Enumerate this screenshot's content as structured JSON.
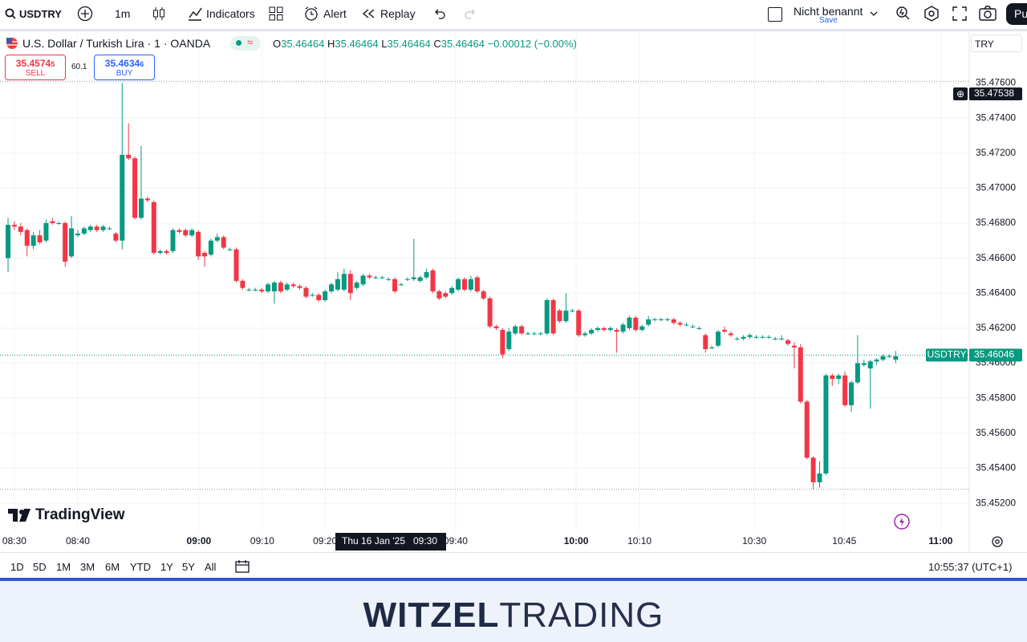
{
  "toolbar": {
    "symbol": "USDTRY",
    "interval": "1m",
    "indicators": "Indicators",
    "alert": "Alert",
    "replay": "Replay",
    "layout_name": "Nicht benannt",
    "save": "Save",
    "publish": "Pu"
  },
  "legend": {
    "title": "U.S. Dollar / Turkish Lira · 1 · OANDA",
    "o_label": "O",
    "o": "35.46464",
    "h_label": "H",
    "h": "35.46464",
    "l_label": "L",
    "l": "35.46464",
    "c_label": "C",
    "c": "35.46464",
    "change": "−0.00012 (−0.00%)"
  },
  "trade": {
    "sell_price": "35.4574",
    "sell_last": "5",
    "sell": "SELL",
    "spread": "60.1",
    "buy_price": "35.4634",
    "buy_last": "6",
    "buy": "BUY"
  },
  "currency": "TRY",
  "logo": "TradingView",
  "ranges": [
    "1D",
    "5D",
    "1M",
    "3M",
    "6M",
    "YTD",
    "1Y",
    "5Y",
    "All"
  ],
  "clock": "10:55:37 (UTC+1)",
  "banner": {
    "bold": "WITZEL",
    "light": "TRADING"
  },
  "chart_data": {
    "type": "candlestick",
    "up_color": "#089981",
    "down_color": "#f23645",
    "grid": true,
    "ylim": [
      35.4504,
      35.479
    ],
    "yticks": [
      {
        "value": 35.476,
        "label": "35.47600"
      },
      {
        "value": 35.474,
        "label": "35.47400"
      },
      {
        "value": 35.472,
        "label": "35.47200"
      },
      {
        "value": 35.47,
        "label": "35.47000"
      },
      {
        "value": 35.468,
        "label": "35.46800"
      },
      {
        "value": 35.466,
        "label": "35.46600"
      },
      {
        "value": 35.464,
        "label": "35.46400"
      },
      {
        "value": 35.462,
        "label": "35.46200"
      },
      {
        "value": 35.46,
        "label": "35.46000"
      },
      {
        "value": 35.458,
        "label": "35.45800"
      },
      {
        "value": 35.456,
        "label": "35.45600"
      },
      {
        "value": 35.454,
        "label": "35.45400"
      },
      {
        "value": 35.452,
        "label": "35.45200"
      }
    ],
    "xlim": [
      -1.27,
      151.6
    ],
    "xticks": [
      {
        "value": 1,
        "label": "08:30"
      },
      {
        "value": 11,
        "label": "08:40"
      },
      {
        "value": 30.1,
        "label": "09:00"
      },
      {
        "value": 40.1,
        "label": "09:10"
      },
      {
        "value": 50,
        "label": "09:20"
      },
      {
        "value": 70.6,
        "label": "09:40"
      },
      {
        "value": 89.6,
        "label": "10:00"
      },
      {
        "value": 99.6,
        "label": "10:10"
      },
      {
        "value": 117.7,
        "label": "10:30"
      },
      {
        "value": 131.9,
        "label": "10:45"
      },
      {
        "value": 147.1,
        "label": "11:00"
      }
    ],
    "high_line": 35.4761,
    "low_line": 35.4528,
    "last_price": {
      "name": "USDTRY",
      "value": 35.46046,
      "label": "35.46046"
    },
    "crosshair": {
      "value": 35.47538,
      "label": "35.47538",
      "date": "Thu 16 Jan '25",
      "time": "09:30"
    },
    "values": [
      [
        35.466,
        35.4683,
        35.4652,
        35.4679
      ],
      [
        35.4679,
        35.4681,
        35.4676,
        35.4678
      ],
      [
        35.4678,
        35.468,
        35.4673,
        35.4675
      ],
      [
        35.4676,
        35.4677,
        35.4661,
        35.4667
      ],
      [
        35.4667,
        35.4675,
        35.4665,
        35.4673
      ],
      [
        35.4673,
        35.4676,
        35.4668,
        35.4669
      ],
      [
        35.467,
        35.4682,
        35.4669,
        35.468
      ],
      [
        35.4681,
        35.4683,
        35.4679,
        35.468
      ],
      [
        35.468,
        35.4681,
        35.4679,
        35.468
      ],
      [
        35.468,
        35.4681,
        35.4655,
        35.4658
      ],
      [
        35.4661,
        35.4684,
        35.466,
        35.4677
      ],
      [
        35.4673,
        35.4676,
        35.4672,
        35.4674
      ],
      [
        35.4674,
        35.4678,
        35.4673,
        35.4677
      ],
      [
        35.4676,
        35.4679,
        35.4675,
        35.4678
      ],
      [
        35.4678,
        35.4679,
        35.4675,
        35.4676
      ],
      [
        35.4676,
        35.4679,
        35.4675,
        35.4678
      ],
      [
        35.4677,
        35.4678,
        35.4676,
        35.4677
      ],
      [
        35.4674,
        35.4675,
        35.4669,
        35.467
      ],
      [
        35.467,
        35.476,
        35.4665,
        35.4719
      ],
      [
        35.4719,
        35.4737,
        35.4716,
        35.4717
      ],
      [
        35.4717,
        35.4718,
        35.4682,
        35.4683
      ],
      [
        35.4683,
        35.4724,
        35.4682,
        35.4694
      ],
      [
        35.4694,
        35.4695,
        35.4692,
        35.4693
      ],
      [
        35.4692,
        35.4693,
        35.4662,
        35.4663
      ],
      [
        35.4663,
        35.4665,
        35.4662,
        35.4664
      ],
      [
        35.4664,
        35.4665,
        35.4662,
        35.4663
      ],
      [
        35.4664,
        35.4677,
        35.4663,
        35.4676
      ],
      [
        35.4676,
        35.4677,
        35.4674,
        35.4675
      ],
      [
        35.4676,
        35.4677,
        35.4672,
        35.4673
      ],
      [
        35.4673,
        35.4677,
        35.4672,
        35.4676
      ],
      [
        35.4675,
        35.4676,
        35.4659,
        35.4661
      ],
      [
        35.4663,
        35.4664,
        35.4655,
        35.4661
      ],
      [
        35.4662,
        35.4671,
        35.4661,
        35.467
      ],
      [
        35.467,
        35.4674,
        35.4669,
        35.4672
      ],
      [
        35.4672,
        35.4673,
        35.4665,
        35.4666
      ],
      [
        35.4665,
        35.4666,
        35.4664,
        35.4665
      ],
      [
        35.4665,
        35.4666,
        35.4646,
        35.4647
      ],
      [
        35.4647,
        35.4648,
        35.4642,
        35.4643
      ],
      [
        35.4642,
        35.4643,
        35.4641,
        35.4642
      ],
      [
        35.4642,
        35.4643,
        35.4641,
        35.4642
      ],
      [
        35.4642,
        35.4643,
        35.464,
        35.4641
      ],
      [
        35.4641,
        35.4646,
        35.464,
        35.4645
      ],
      [
        35.4641,
        35.4647,
        35.4634,
        35.4646
      ],
      [
        35.4646,
        35.4647,
        35.464,
        35.4641
      ],
      [
        35.4642,
        35.4646,
        35.4641,
        35.4645
      ],
      [
        35.4645,
        35.4646,
        35.4643,
        35.4644
      ],
      [
        35.4644,
        35.4645,
        35.4642,
        35.4643
      ],
      [
        35.4643,
        35.4644,
        35.4637,
        35.4638
      ],
      [
        35.4639,
        35.464,
        35.4638,
        35.4639
      ],
      [
        35.4639,
        35.464,
        35.4635,
        35.4636
      ],
      [
        35.4636,
        35.4642,
        35.4635,
        35.4641
      ],
      [
        35.4641,
        35.4646,
        35.464,
        35.4645
      ],
      [
        35.4642,
        35.4652,
        35.4641,
        35.4648
      ],
      [
        35.4642,
        35.4654,
        35.4641,
        35.4651
      ],
      [
        35.4651,
        35.4653,
        35.4636,
        35.464
      ],
      [
        35.4643,
        35.4647,
        35.4642,
        35.4646
      ],
      [
        35.4645,
        35.4651,
        35.4644,
        35.465
      ],
      [
        35.465,
        35.4651,
        35.4648,
        35.4649
      ],
      [
        35.4649,
        35.465,
        35.4648,
        35.4649
      ],
      [
        35.4649,
        35.465,
        35.4648,
        35.4649
      ],
      [
        35.4648,
        35.4649,
        35.4647,
        35.4648
      ],
      [
        35.4648,
        35.4649,
        35.464,
        35.4641
      ],
      [
        35.4645,
        35.4646,
        35.4644,
        35.4645
      ],
      [
        35.4648,
        35.4649,
        35.4647,
        35.4648
      ],
      [
        35.4648,
        35.4671,
        35.4647,
        35.4649
      ],
      [
        35.4647,
        35.465,
        35.4646,
        35.4649
      ],
      [
        35.4649,
        35.4654,
        35.4648,
        35.4652
      ],
      [
        35.4653,
        35.4654,
        35.464,
        35.4641
      ],
      [
        35.4641,
        35.4642,
        35.4636,
        35.4637
      ],
      [
        35.464,
        35.4641,
        35.4637,
        35.4638
      ],
      [
        35.464,
        35.4644,
        35.4639,
        35.4643
      ],
      [
        35.4642,
        35.4649,
        35.4641,
        35.4648
      ],
      [
        35.4648,
        35.4649,
        35.4641,
        35.4642
      ],
      [
        35.4642,
        35.465,
        35.4641,
        35.4648
      ],
      [
        35.4649,
        35.465,
        35.464,
        35.4641
      ],
      [
        35.4641,
        35.4642,
        35.4636,
        35.4637
      ],
      [
        35.4637,
        35.4638,
        35.462,
        35.4621
      ],
      [
        35.4621,
        35.4622,
        35.4619,
        35.462
      ],
      [
        35.4619,
        35.462,
        35.4603,
        35.4605
      ],
      [
        35.4608,
        35.462,
        35.4607,
        35.4618
      ],
      [
        35.4617,
        35.4622,
        35.4616,
        35.4621
      ],
      [
        35.4621,
        35.4622,
        35.4616,
        35.4617
      ],
      [
        35.4617,
        35.4618,
        35.4616,
        35.4617
      ],
      [
        35.4617,
        35.4618,
        35.4616,
        35.4617
      ],
      [
        35.4617,
        35.4618,
        35.4616,
        35.4617
      ],
      [
        35.4617,
        35.4637,
        35.4616,
        35.4636
      ],
      [
        35.4636,
        35.4637,
        35.4616,
        35.4617
      ],
      [
        35.463,
        35.4631,
        35.4623,
        35.4624
      ],
      [
        35.4624,
        35.464,
        35.4623,
        35.463
      ],
      [
        35.463,
        35.4631,
        35.4629,
        35.463
      ],
      [
        35.463,
        35.4631,
        35.4615,
        35.4616
      ],
      [
        35.4616,
        35.4618,
        35.4615,
        35.4617
      ],
      [
        35.4617,
        35.462,
        35.4616,
        35.4619
      ],
      [
        35.4619,
        35.4621,
        35.4618,
        35.462
      ],
      [
        35.462,
        35.4621,
        35.4618,
        35.4619
      ],
      [
        35.4619,
        35.4621,
        35.4618,
        35.462
      ],
      [
        35.4619,
        35.462,
        35.4606,
        35.4618
      ],
      [
        35.4618,
        35.4623,
        35.4617,
        35.4622
      ],
      [
        35.462,
        35.4627,
        35.4619,
        35.4626
      ],
      [
        35.4626,
        35.4627,
        35.4618,
        35.4619
      ],
      [
        35.4619,
        35.4622,
        35.4618,
        35.4621
      ],
      [
        35.4622,
        35.4627,
        35.4621,
        35.4625
      ],
      [
        35.4625,
        35.4626,
        35.4624,
        35.4625
      ],
      [
        35.4625,
        35.4626,
        35.4624,
        35.4625
      ],
      [
        35.4625,
        35.4626,
        35.4624,
        35.4625
      ],
      [
        35.4625,
        35.4626,
        35.4622,
        35.4623
      ],
      [
        35.4623,
        35.4624,
        35.4621,
        35.4622
      ],
      [
        35.4622,
        35.4623,
        35.4621,
        35.4622
      ],
      [
        35.4621,
        35.4622,
        35.462,
        35.4621
      ],
      [
        35.462,
        35.4621,
        35.4619,
        35.462
      ],
      [
        35.4616,
        35.4617,
        35.4606,
        35.4608
      ],
      [
        35.4609,
        35.461,
        35.4608,
        35.4609
      ],
      [
        35.461,
        35.4619,
        35.4609,
        35.4618
      ],
      [
        35.4619,
        35.4621,
        35.4617,
        35.4618
      ],
      [
        35.4617,
        35.4618,
        35.4615,
        35.4616
      ],
      [
        35.4614,
        35.4615,
        35.4613,
        35.4614
      ],
      [
        35.4614,
        35.4616,
        35.4613,
        35.4615
      ],
      [
        35.4615,
        35.4617,
        35.4614,
        35.4616
      ],
      [
        35.4615,
        35.4616,
        35.4614,
        35.4615
      ],
      [
        35.4615,
        35.4616,
        35.4614,
        35.4615
      ],
      [
        35.4615,
        35.4616,
        35.4614,
        35.4615
      ],
      [
        35.4614,
        35.4615,
        35.4613,
        35.4614
      ],
      [
        35.4614,
        35.4616,
        35.4613,
        35.4614
      ],
      [
        35.4613,
        35.4614,
        35.461,
        35.4611
      ],
      [
        35.461,
        35.4612,
        35.4597,
        35.4609
      ],
      [
        35.4609,
        35.4611,
        35.4577,
        35.4578
      ],
      [
        35.4578,
        35.4579,
        35.4545,
        35.4546
      ],
      [
        35.4546,
        35.4547,
        35.4528,
        35.4532
      ],
      [
        35.4532,
        35.4544,
        35.4529,
        35.4537
      ],
      [
        35.4537,
        35.4594,
        35.4536,
        35.4593
      ],
      [
        35.4593,
        35.4594,
        35.4587,
        35.4591
      ],
      [
        35.4591,
        35.4594,
        35.4588,
        35.4593
      ],
      [
        35.4593,
        35.4595,
        35.4575,
        35.4576
      ],
      [
        35.4576,
        35.459,
        35.4572,
        35.4589
      ],
      [
        35.4589,
        35.4616,
        35.4588,
        35.46
      ],
      [
        35.4599,
        35.4602,
        35.4598,
        35.46
      ],
      [
        35.4597,
        35.4602,
        35.4574,
        35.4601
      ],
      [
        35.4601,
        35.4603,
        35.4599,
        35.4602
      ],
      [
        35.4602,
        35.4605,
        35.4601,
        35.4604
      ],
      [
        35.4604,
        35.4605,
        35.4603,
        35.4604
      ],
      [
        35.4602,
        35.4607,
        35.46,
        35.4604
      ]
    ]
  }
}
